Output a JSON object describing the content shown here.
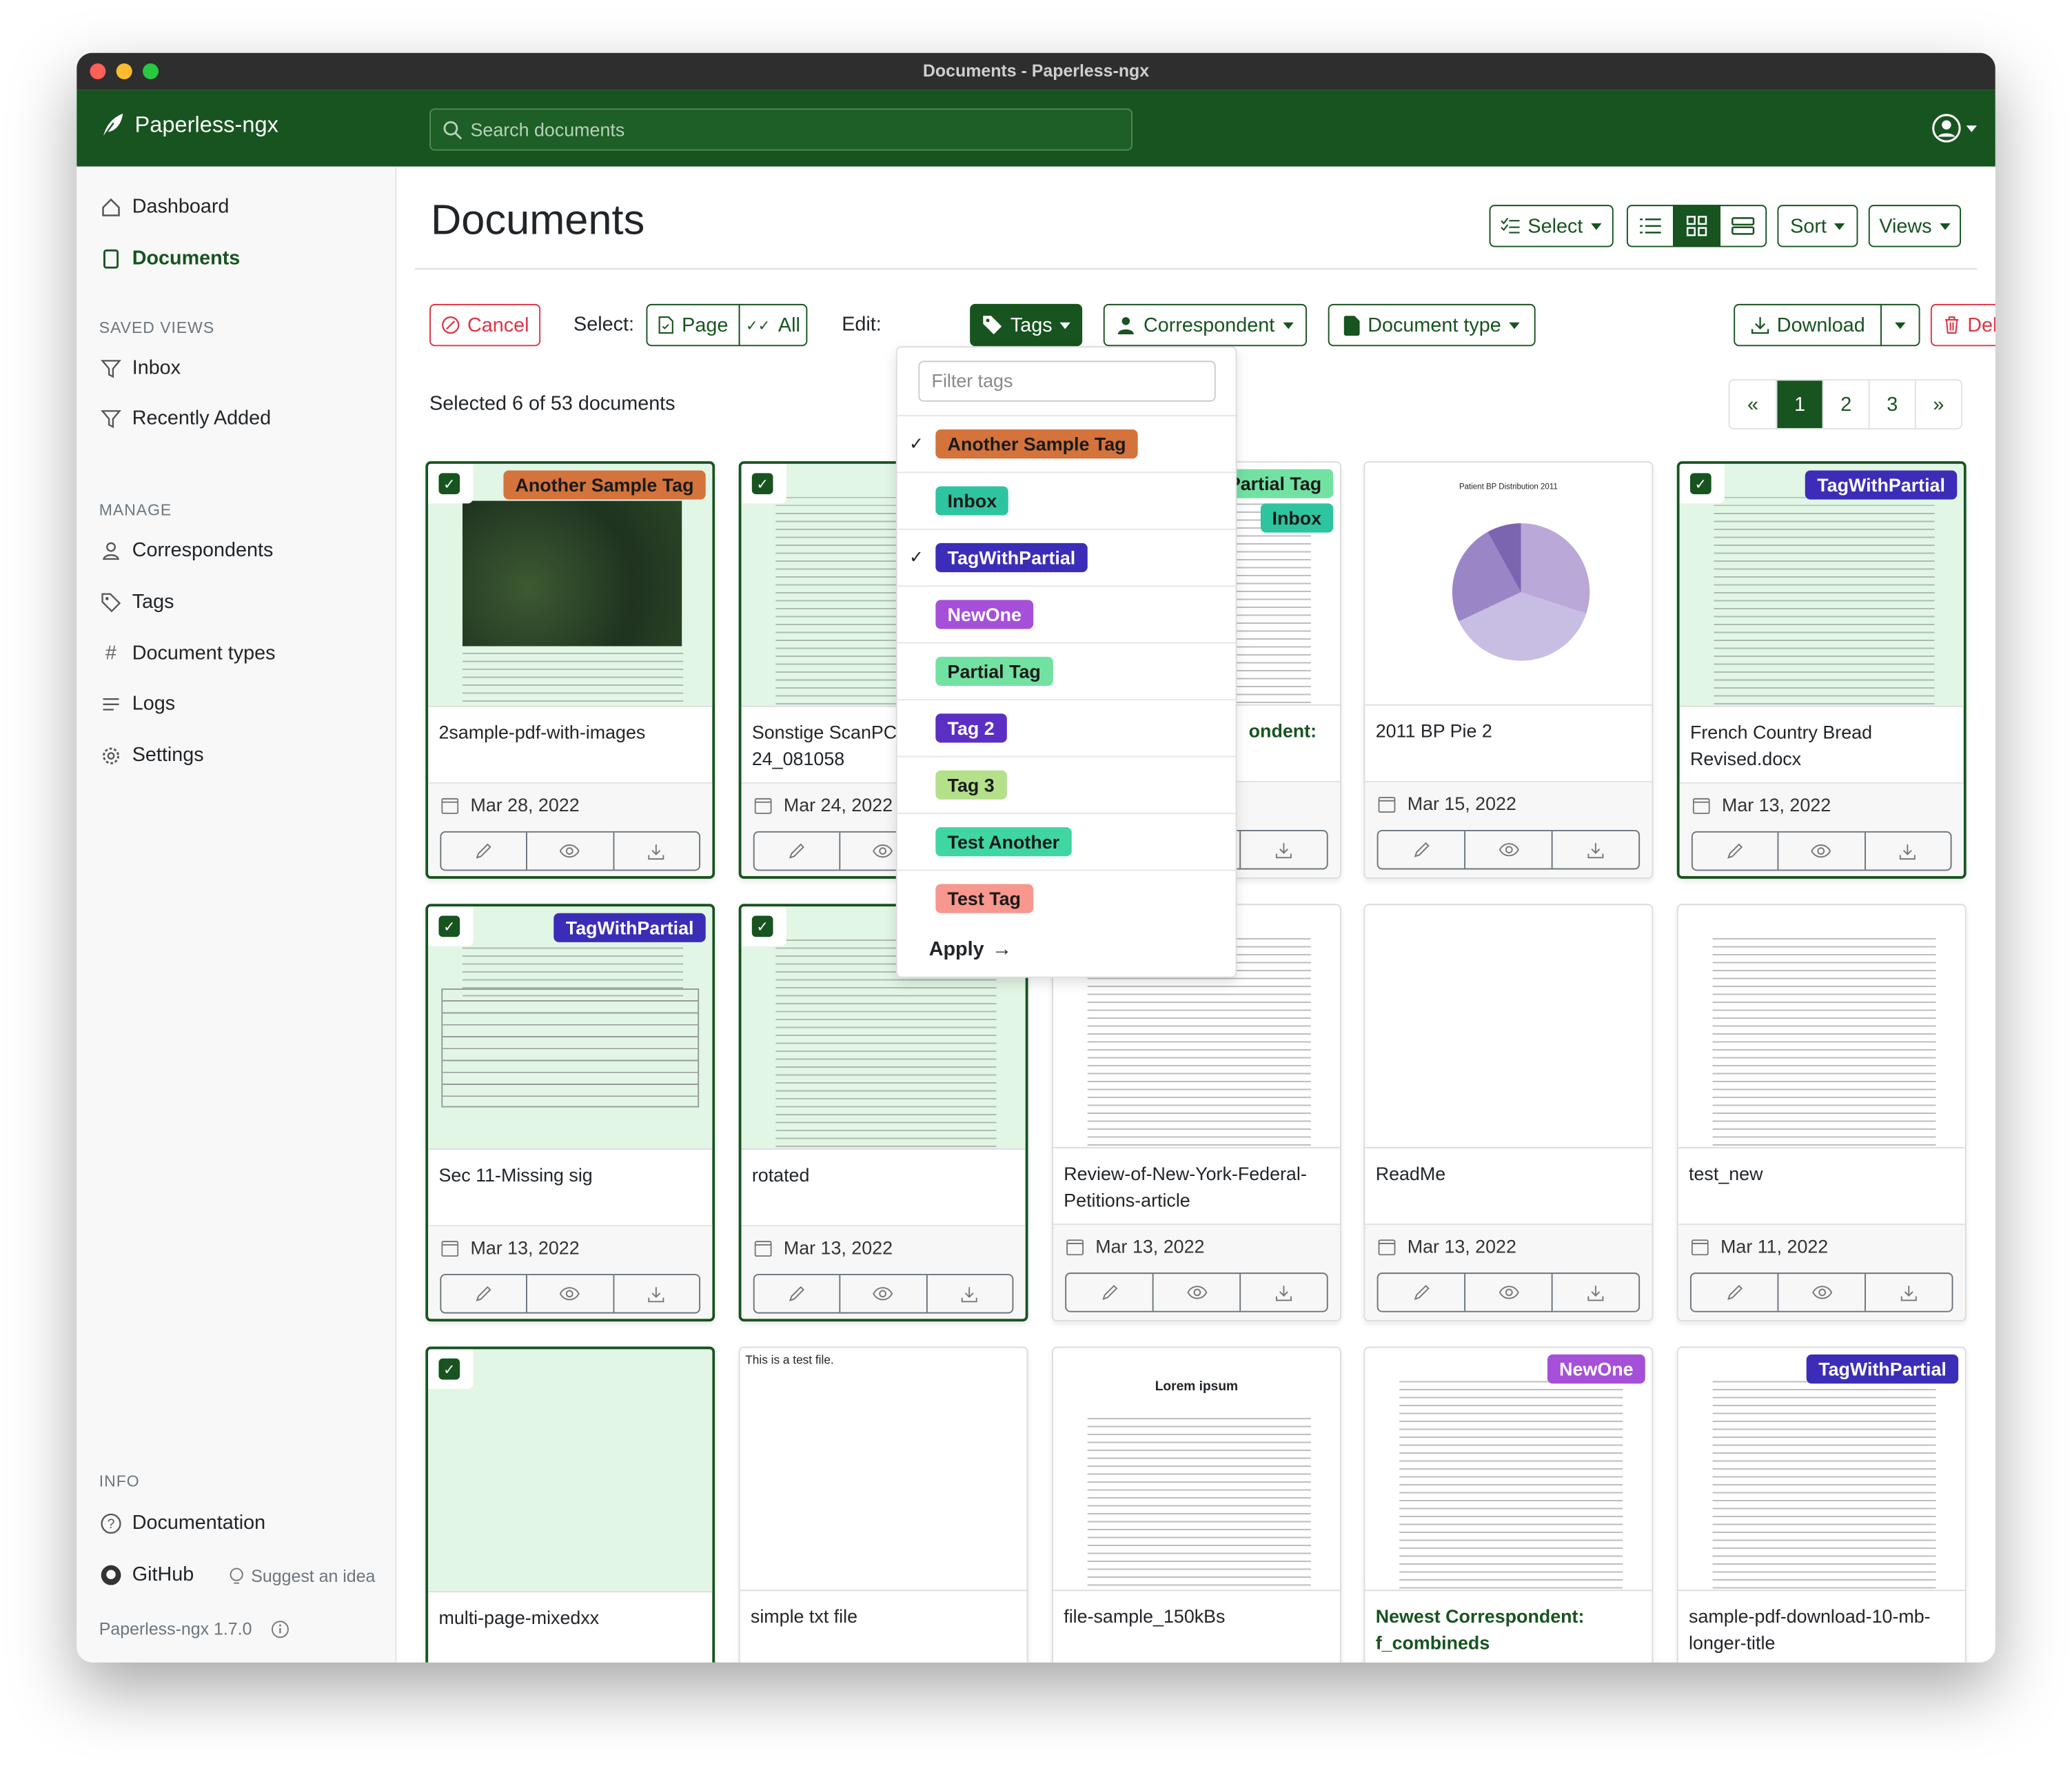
{
  "window": {
    "title": "Documents - Paperless-ngx"
  },
  "header": {
    "brand": "Paperless-ngx",
    "search_placeholder": "Search documents"
  },
  "sidebar": {
    "nav": [
      {
        "label": "Dashboard",
        "icon": "house-icon"
      },
      {
        "label": "Documents",
        "icon": "file-icon",
        "active": true
      }
    ],
    "saved_views_title": "SAVED VIEWS",
    "saved_views": [
      {
        "label": "Inbox"
      },
      {
        "label": "Recently Added"
      }
    ],
    "manage_title": "MANAGE",
    "manage": [
      {
        "label": "Correspondents",
        "icon": "person-icon"
      },
      {
        "label": "Tags",
        "icon": "tag-icon"
      },
      {
        "label": "Document types",
        "icon": "hash-icon"
      },
      {
        "label": "Logs",
        "icon": "list-icon"
      },
      {
        "label": "Settings",
        "icon": "gear-icon"
      }
    ],
    "info_title": "INFO",
    "documentation": "Documentation",
    "github": "GitHub",
    "suggest": "Suggest an idea",
    "version": "Paperless-ngx 1.7.0"
  },
  "main": {
    "title": "Documents",
    "toolbar": {
      "select": "Select",
      "sort": "Sort",
      "views": "Views"
    },
    "bulk": {
      "cancel": "Cancel",
      "select_label": "Select:",
      "page": "Page",
      "all": "All",
      "edit_label": "Edit:",
      "tags": "Tags",
      "correspondent": "Correspondent",
      "document_type": "Document type",
      "download": "Download",
      "delete": "Delete"
    },
    "selection_status": "Selected 6 of 53 documents",
    "pagination": [
      "«",
      "1",
      "2",
      "3",
      "»"
    ],
    "current_page": "1"
  },
  "tags_dropdown": {
    "filter_placeholder": "Filter tags",
    "items": [
      {
        "name": "Another Sample Tag",
        "checked": true
      },
      {
        "name": "Inbox",
        "checked": false
      },
      {
        "name": "TagWithPartial",
        "checked": true
      },
      {
        "name": "NewOne",
        "checked": false
      },
      {
        "name": "Partial Tag",
        "checked": false
      },
      {
        "name": "Tag 2",
        "checked": false
      },
      {
        "name": "Tag 3",
        "checked": false
      },
      {
        "name": "Test Another",
        "checked": false
      },
      {
        "name": "Test Tag",
        "checked": false
      }
    ],
    "apply": "Apply"
  },
  "tag_colors": {
    "Another Sample Tag": [
      "#d4733c",
      "#1a1a1a"
    ],
    "Inbox": [
      "#2ec4a0",
      "#1a1a1a"
    ],
    "TagWithPartial": [
      "#3b2db8",
      "#ffffff"
    ],
    "NewOne": [
      "#a64fd8",
      "#ffffff"
    ],
    "Partial Tag": [
      "#72e2a3",
      "#1a1a1a"
    ],
    "Tag 2": [
      "#5a2fc2",
      "#ffffff"
    ],
    "Tag 3": [
      "#b4e08a",
      "#1a1a1a"
    ],
    "Test Another": [
      "#3fd6a2",
      "#1a1a1a"
    ],
    "Test Tag": [
      "#f7978d",
      "#1a1a1a"
    ]
  },
  "accent": "#17541f",
  "cards": [
    {
      "title": "2sample-pdf-with-images",
      "date": "Mar 28, 2022",
      "tags": [
        "Another Sample Tag"
      ],
      "selected": true,
      "thumb": "map"
    },
    {
      "title": "Sonstige ScanPC2\n24_081058",
      "date": "Mar 24, 2022",
      "tags": [],
      "selected": true,
      "thumb": "text"
    },
    {
      "title": "ondent:",
      "correspondent": true,
      "date": "",
      "tags": [
        "Partial Tag",
        "Inbox"
      ],
      "selected": false,
      "thumb": "text"
    },
    {
      "title": "2011 BP Pie 2",
      "date": "Mar 15, 2022",
      "tags": [],
      "selected": false,
      "thumb": "pie",
      "thumb_caption": "Patient BP Distribution 2011"
    },
    {
      "title": "French Country Bread\nRevised.docx",
      "date": "Mar 13, 2022",
      "tags": [
        "TagWithPartial"
      ],
      "selected": true,
      "thumb": "text"
    },
    {
      "title": "Sec 11-Missing sig",
      "date": "Mar 13, 2022",
      "tags": [
        "TagWithPartial"
      ],
      "selected": true,
      "thumb": "form"
    },
    {
      "title": "rotated",
      "date": "Mar 13, 2022",
      "tags": [],
      "selected": true,
      "thumb": "text"
    },
    {
      "title": "Review-of-New-York-Federal-\nPetitions-article",
      "date": "Mar 13, 2022",
      "tags": [],
      "selected": false,
      "thumb": "text"
    },
    {
      "title": "ReadMe",
      "date": "Mar 13, 2022",
      "tags": [],
      "selected": false,
      "thumb": "blank"
    },
    {
      "title": "test_new",
      "date": "Mar 11, 2022",
      "tags": [],
      "selected": false,
      "thumb": "text"
    },
    {
      "title": "multi-page-mixedxx",
      "date": "",
      "tags": [],
      "selected": true,
      "thumb": "blank"
    },
    {
      "title": "simple txt file",
      "date": "",
      "tags": [],
      "selected": false,
      "thumb": "txt",
      "thumb_caption": "This is a test file."
    },
    {
      "title": "file-sample_150kBs",
      "date": "",
      "tags": [],
      "selected": false,
      "thumb": "text",
      "thumb_caption": "Lorem ipsum"
    },
    {
      "title": "Newest Correspondent:\nf_combineds",
      "correspondent": true,
      "date": "",
      "tags": [
        "NewOne"
      ],
      "selected": false,
      "thumb": "text"
    },
    {
      "title": "sample-pdf-download-10-mb-\nlonger-title",
      "date": "",
      "tags": [
        "TagWithPartial"
      ],
      "selected": false,
      "thumb": "text"
    }
  ]
}
